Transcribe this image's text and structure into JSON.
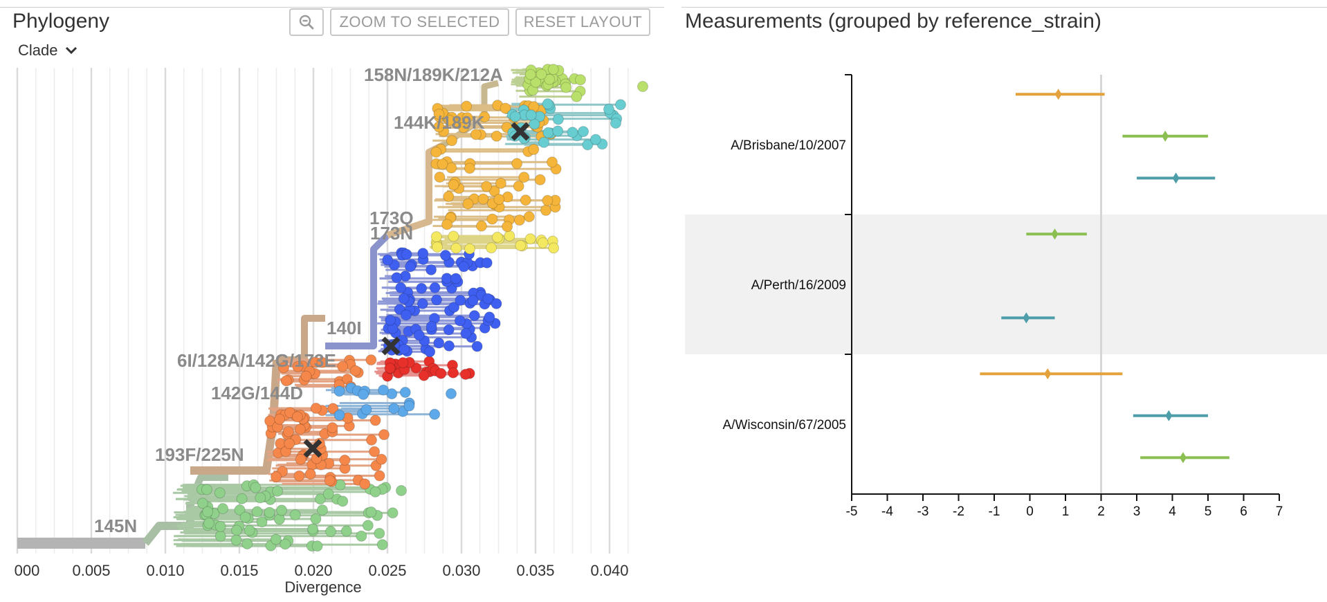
{
  "phylogeny": {
    "title": "Phylogeny",
    "zoom_out_icon": "zoom-out-icon",
    "zoom_selected_label": "ZOOM TO SELECTED",
    "reset_layout_label": "RESET LAYOUT",
    "color_by": {
      "selected": "Clade",
      "icon": "chevron-down-icon"
    },
    "x_ticks": [
      "000",
      "0.005",
      "0.010",
      "0.015",
      "0.020",
      "0.025",
      "0.030",
      "0.035",
      "0.040"
    ],
    "x_axis_label": "Divergence",
    "clade_labels": [
      "158N/189K/212A",
      "144K/189K",
      "173Q",
      "173N",
      "140I",
      "6I/128A/142G/173E",
      "142G/144D",
      "193F/225N",
      "145N"
    ],
    "clade_colors": {
      "root": "#b4b4b4",
      "145N": "#8fd18b",
      "193F/225N": "#f5874a",
      "6I/128A/142G/173E": "#f5874a",
      "142G/144D": "#5ca8e8",
      "140I": "#e8302b",
      "173N": "#3f5ff0",
      "173Q": "#f3e860",
      "144K/189K": "#68cdd0",
      "158N/189K/212A": "#b9e06b",
      "orange": "#f5b53a"
    }
  },
  "measurements": {
    "title": "Measurements (grouped by reference_strain)",
    "x_ticks": [
      "-5",
      "-4",
      "-3",
      "-2",
      "-1",
      "0",
      "1",
      "2",
      "3",
      "4",
      "5",
      "6",
      "7"
    ],
    "threshold": 2,
    "groups": [
      {
        "label": "A/Brisbane/10/2007",
        "shaded": false,
        "points": [
          {
            "color": "#e3a23b",
            "mean": 0.8,
            "low": -0.4,
            "high": 2.1
          },
          {
            "color": "#8bbf52",
            "mean": 3.8,
            "low": 2.6,
            "high": 5.0
          },
          {
            "color": "#4d9ea8",
            "mean": 4.1,
            "low": 3.0,
            "high": 5.2
          }
        ]
      },
      {
        "label": "A/Perth/16/2009",
        "shaded": true,
        "points": [
          {
            "color": "#8bbf52",
            "mean": 0.7,
            "low": -0.1,
            "high": 1.6
          },
          {
            "color": "#4d9ea8",
            "mean": -0.1,
            "low": -0.8,
            "high": 0.7
          }
        ]
      },
      {
        "label": "A/Wisconsin/67/2005",
        "shaded": false,
        "points": [
          {
            "color": "#e3a23b",
            "mean": 0.5,
            "low": -1.4,
            "high": 2.6
          },
          {
            "color": "#4d9ea8",
            "mean": 3.9,
            "low": 2.9,
            "high": 5.0
          },
          {
            "color": "#8bbf52",
            "mean": 4.3,
            "low": 3.1,
            "high": 5.6
          }
        ]
      }
    ]
  }
}
